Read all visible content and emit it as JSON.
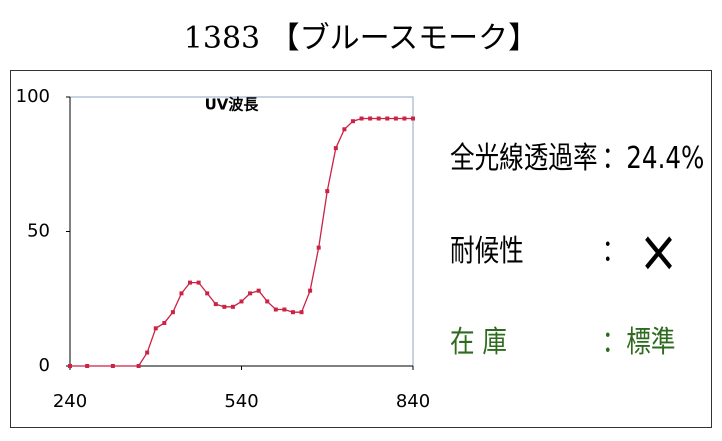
{
  "title": "1383 【ブルースモーク】",
  "chart_data": {
    "type": "line",
    "title": "UV波長",
    "x": [
      240,
      270,
      315,
      360,
      375,
      390,
      405,
      420,
      435,
      450,
      465,
      480,
      495,
      510,
      525,
      540,
      555,
      570,
      585,
      600,
      615,
      630,
      645,
      660,
      675,
      690,
      705,
      720,
      735,
      750,
      765,
      780,
      795,
      810,
      825,
      840
    ],
    "values": [
      0,
      0,
      0,
      0,
      5,
      14,
      16,
      20,
      27,
      31,
      31,
      27,
      23,
      22,
      22,
      24,
      27,
      28,
      24,
      21,
      21,
      20,
      20,
      28,
      44,
      65,
      81,
      88,
      91,
      92,
      92,
      92,
      92,
      92,
      92,
      92
    ],
    "color": "#cc2244",
    "xlim": [
      240,
      840
    ],
    "xticks": [
      240,
      540,
      840
    ],
    "ylim": [
      0,
      100
    ],
    "yticks": [
      0,
      50,
      100
    ]
  },
  "specs": [
    {
      "label": "全光線透過率",
      "value": "：24.4%"
    },
    {
      "label": "耐候性",
      "sep": "：",
      "value": "×"
    },
    {
      "label": "在 庫",
      "value": "：標準"
    }
  ]
}
